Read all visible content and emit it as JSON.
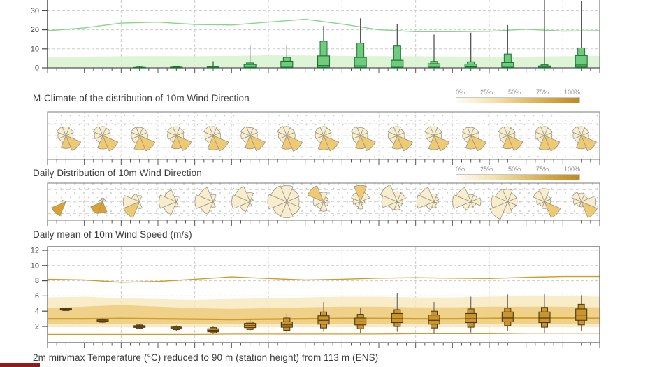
{
  "palette": {
    "green_line": "#86d58a",
    "green_band": "#d8f2d0",
    "green_box_fill": "#6fcb7e",
    "green_box_edge": "#1f6f33",
    "rose_light": "#f7edc9",
    "rose_dark": "#eec566",
    "rose_strong": "#d9991f",
    "rose_edge": "#9a958a",
    "gold_line": "#cf9c2c",
    "gold_band_outer": "#f6e7bb",
    "gold_band_inner": "#eecd7f",
    "gold_box_fill": "#c9952e",
    "gold_box_edge": "#4f3a10",
    "whisker": "#606060",
    "grid": "#cccccc",
    "axis": "#4a4a4a",
    "frame": "#8f8f8f",
    "red_strip": "#8e1c1c"
  },
  "chart_data": {
    "type": "meteogram",
    "days": 15,
    "wind_gusts": {
      "type": "box",
      "yticks": [
        0,
        10,
        20,
        30
      ],
      "ylim": [
        0,
        36
      ],
      "climate_line": [
        19.5,
        21,
        23.5,
        24,
        22.8,
        22.5,
        24,
        25.5,
        23,
        20,
        19,
        19,
        19.2,
        20.3,
        19.3,
        19.5
      ],
      "climate_band_top": [
        5.6,
        5.9,
        6.1,
        6.2,
        6.1,
        6.3,
        6.6,
        6.5,
        6.3,
        6.2,
        6.1,
        6.0,
        5.9,
        5.9,
        6.1,
        6.3
      ],
      "boxes": [
        null,
        null,
        [
          0,
          0,
          0,
          0.05,
          0.25,
          0.45,
          0.7
        ],
        [
          0,
          0,
          0,
          0.1,
          0.4,
          0.7,
          1.1
        ],
        [
          0,
          0,
          0,
          0.1,
          0.5,
          0.9,
          3.5
        ],
        [
          0,
          0,
          0,
          0.3,
          1.8,
          2.6,
          12
        ],
        [
          0,
          0,
          0.2,
          0.8,
          3.5,
          5.5,
          12
        ],
        [
          0,
          0,
          0.3,
          1.2,
          6.3,
          14,
          22
        ],
        [
          0,
          0,
          0.3,
          1.0,
          5.5,
          13,
          26
        ],
        [
          0,
          0,
          0.2,
          0.8,
          4.0,
          11.5,
          23
        ],
        [
          0,
          0,
          0.2,
          0.8,
          2.2,
          3.4,
          17.5
        ],
        [
          0,
          0,
          0.1,
          0.6,
          2.0,
          3.2,
          18.5
        ],
        [
          0,
          0,
          0.2,
          0.8,
          2.8,
          7.3,
          22.5
        ],
        [
          0,
          0,
          0.1,
          0.4,
          1.0,
          1.6,
          36
        ],
        [
          0,
          0,
          0.4,
          1.5,
          6.5,
          10.5,
          35
        ]
      ]
    },
    "windrose_mclimate": {
      "type": "windrose",
      "title": "M-Climate of the distribution of 10m Wind Direction",
      "legend": [
        "0%",
        "25%",
        "50%",
        "75%",
        "100%"
      ],
      "directions": [
        "N",
        "NE",
        "E",
        "SE",
        "S",
        "SW",
        "W",
        "NW"
      ],
      "roses": [
        {
          "r": [
            0.55,
            0.5,
            0.45,
            1,
            0.8,
            0.45,
            0.5,
            0.6
          ],
          "dark": [
            3,
            4
          ],
          "scale": 0.92
        },
        {
          "r": [
            0.55,
            0.5,
            0.45,
            1,
            0.8,
            0.45,
            0.5,
            0.6
          ],
          "dark": [
            3,
            4
          ],
          "scale": 0.95
        },
        {
          "r": [
            0.5,
            0.5,
            0.5,
            1,
            0.85,
            0.5,
            0.5,
            0.55
          ],
          "dark": [
            3,
            4
          ],
          "scale": 0.95
        },
        {
          "r": [
            0.55,
            0.5,
            0.45,
            1,
            0.8,
            0.45,
            0.55,
            0.6
          ],
          "dark": [
            3,
            4
          ],
          "scale": 0.93
        },
        {
          "r": [
            0.55,
            0.45,
            0.45,
            1,
            0.85,
            0.5,
            0.5,
            0.6
          ],
          "dark": [
            3,
            4
          ],
          "scale": 0.95
        },
        {
          "r": [
            0.5,
            0.5,
            0.45,
            1,
            0.8,
            0.5,
            0.55,
            0.6
          ],
          "dark": [
            3,
            4
          ],
          "scale": 0.94
        },
        {
          "r": [
            0.55,
            0.5,
            0.5,
            1,
            0.8,
            0.45,
            0.5,
            0.6
          ],
          "dark": [
            3,
            4
          ],
          "scale": 0.96
        },
        {
          "r": [
            0.55,
            0.5,
            0.45,
            1,
            0.85,
            0.45,
            0.5,
            0.55
          ],
          "dark": [
            3,
            4
          ],
          "scale": 0.95
        },
        {
          "r": [
            0.5,
            0.5,
            0.45,
            1,
            0.8,
            0.5,
            0.5,
            0.6
          ],
          "dark": [
            3,
            4
          ],
          "scale": 0.93
        },
        {
          "r": [
            0.55,
            0.45,
            0.45,
            1,
            0.8,
            0.5,
            0.55,
            0.6
          ],
          "dark": [
            3,
            4
          ],
          "scale": 0.95
        },
        {
          "r": [
            0.55,
            0.5,
            0.45,
            1,
            0.85,
            0.45,
            0.5,
            0.6
          ],
          "dark": [
            3,
            4
          ],
          "scale": 0.94
        },
        {
          "r": [
            0.5,
            0.5,
            0.5,
            1,
            0.8,
            0.45,
            0.5,
            0.55
          ],
          "dark": [
            3,
            4
          ],
          "scale": 0.95
        },
        {
          "r": [
            0.55,
            0.5,
            0.45,
            1,
            0.8,
            0.5,
            0.5,
            0.6
          ],
          "dark": [
            3,
            4
          ],
          "scale": 0.93
        },
        {
          "r": [
            0.55,
            0.5,
            0.45,
            1,
            0.85,
            0.45,
            0.55,
            0.6
          ],
          "dark": [
            3,
            4
          ],
          "scale": 0.95
        },
        {
          "r": [
            0.55,
            0.5,
            0.45,
            1,
            0.8,
            0.45,
            0.5,
            0.6
          ],
          "dark": [
            3,
            4
          ],
          "scale": 0.94
        }
      ]
    },
    "windrose_daily": {
      "type": "windrose",
      "title": "Daily Distribution of 10m Wind Direction",
      "legend": [
        "0%",
        "25%",
        "50%",
        "75%",
        "100%"
      ],
      "directions": [
        "N",
        "NE",
        "E",
        "SE",
        "S",
        "SW",
        "W",
        "NW"
      ],
      "roses": [
        {
          "r": [
            0,
            0,
            0,
            0,
            0,
            1,
            0.25,
            0
          ],
          "dark": [
            5
          ],
          "strong": true,
          "scale": 0.85
        },
        {
          "r": [
            0.25,
            0.2,
            0,
            0,
            0.75,
            0.9,
            0.25,
            0.2
          ],
          "dark": [
            4,
            5
          ],
          "strong": true,
          "scale": 0.8
        },
        {
          "r": [
            0.35,
            0,
            0,
            0,
            0.4,
            1,
            0.95,
            0.5
          ],
          "dark": [
            5
          ],
          "scale": 0.95
        },
        {
          "r": [
            0.3,
            0,
            0,
            0,
            0.3,
            0.8,
            1,
            0.75
          ],
          "dark": [],
          "scale": 0.95
        },
        {
          "r": [
            0.4,
            0.15,
            0,
            0,
            0.3,
            0.75,
            1,
            0.85
          ],
          "dark": [],
          "scale": 1.0
        },
        {
          "r": [
            0.5,
            0.2,
            0,
            0,
            0.25,
            0.6,
            1,
            0.9
          ],
          "dark": [],
          "scale": 1.0
        },
        {
          "r": [
            0.85,
            0.7,
            0.65,
            0.75,
            0.85,
            0.8,
            1,
            0.9
          ],
          "dark": [],
          "scale": 1.05
        },
        {
          "r": [
            0.55,
            0.3,
            0.25,
            0.3,
            0.55,
            0.45,
            0.6,
            1
          ],
          "dark": [
            7
          ],
          "scale": 0.95
        },
        {
          "r": [
            1,
            0.6,
            0.25,
            0.2,
            0.45,
            0.35,
            0.45,
            0.6
          ],
          "dark": [
            0
          ],
          "scale": 0.9
        },
        {
          "r": [
            0.55,
            0.5,
            0.3,
            0.3,
            0.45,
            0.5,
            0.85,
            1
          ],
          "dark": [],
          "scale": 1.0
        },
        {
          "r": [
            0.45,
            0.3,
            0.25,
            0.2,
            0.35,
            0.5,
            1,
            0.9
          ],
          "dark": [],
          "scale": 0.95
        },
        {
          "r": [
            0.4,
            0.4,
            0.55,
            0.3,
            0.35,
            0.5,
            1,
            0.85
          ],
          "dark": [],
          "scale": 1.0
        },
        {
          "r": [
            0.65,
            0.5,
            0.5,
            0.45,
            0.6,
            1,
            0.85,
            0.7
          ],
          "dark": [],
          "scale": 1.05
        },
        {
          "r": [
            0.75,
            0.4,
            0.35,
            1,
            0.4,
            0.3,
            0.45,
            0.7
          ],
          "dark": [
            3
          ],
          "scale": 0.95
        },
        {
          "r": [
            0.5,
            0.4,
            0.85,
            1,
            0.3,
            0.3,
            0.45,
            0.6
          ],
          "dark": [
            3
          ],
          "scale": 0.95
        }
      ]
    },
    "wind_speed": {
      "type": "box",
      "title": "Daily mean of 10m Wind Speed (m/s)",
      "yticks": [
        2,
        4,
        6,
        8,
        10,
        12
      ],
      "ylim": [
        0,
        12.5
      ],
      "upper_line": [
        8.2,
        8.1,
        7.8,
        7.9,
        8.2,
        8.5,
        8.3,
        8.1,
        8.2,
        8.35,
        8.4,
        8.35,
        8.3,
        8.45,
        8.55,
        8.55
      ],
      "lower_line": [
        0.95,
        0.95,
        0.95,
        0.95,
        0.95,
        1,
        1,
        1,
        1,
        1,
        1.05,
        1.05,
        1.05,
        1.1,
        1.1,
        1.1
      ],
      "median_line": [
        3,
        3,
        3.05,
        3,
        2.95,
        2.9,
        2.95,
        3,
        3.05,
        3.05,
        3,
        3,
        3.05,
        3.1,
        3.1,
        3.05
      ],
      "band_outer": {
        "top": [
          5.8,
          5.9,
          5.7,
          5.6,
          5.5,
          5.6,
          5.7,
          5.8,
          5.9,
          5.9,
          5.8,
          5.8,
          5.9,
          6,
          6,
          5.9
        ],
        "bottom": 1.9
      },
      "band_inner": {
        "top": [
          4.4,
          4.6,
          4.8,
          4.6,
          4.4,
          4.3,
          4.4,
          4.5,
          4.6,
          4.6,
          4.5,
          4.5,
          4.6,
          4.6,
          4.6,
          4.5
        ],
        "bottom": 2.3
      },
      "boxes": [
        [
          4.0,
          4.08,
          4.15,
          4.25,
          4.35,
          4.42,
          4.5
        ],
        [
          2.45,
          2.55,
          2.62,
          2.72,
          2.85,
          2.95,
          3.05
        ],
        [
          1.65,
          1.78,
          1.88,
          1.98,
          2.1,
          2.2,
          2.32
        ],
        [
          1.45,
          1.58,
          1.68,
          1.8,
          1.92,
          2.02,
          2.15
        ],
        [
          1.0,
          1.15,
          1.3,
          1.5,
          1.7,
          1.85,
          2.05
        ],
        [
          1.35,
          1.6,
          1.85,
          2.1,
          2.4,
          2.6,
          3.0
        ],
        [
          1.1,
          1.5,
          1.9,
          2.2,
          2.6,
          3.1,
          3.7
        ],
        [
          1.3,
          1.8,
          2.3,
          2.8,
          3.4,
          3.9,
          5.2
        ],
        [
          1.1,
          1.7,
          2.2,
          2.6,
          3.1,
          3.6,
          4.4
        ],
        [
          1.3,
          2.0,
          2.5,
          3.0,
          3.7,
          4.2,
          6.4
        ],
        [
          1.0,
          1.8,
          2.3,
          2.8,
          3.5,
          4.0,
          5.2
        ],
        [
          1.2,
          1.9,
          2.5,
          3.0,
          3.7,
          4.3,
          5.9
        ],
        [
          1.4,
          2.1,
          2.6,
          3.1,
          3.9,
          4.4,
          6.2
        ],
        [
          1.1,
          1.9,
          2.5,
          3.1,
          3.9,
          4.5,
          6.3
        ],
        [
          1.4,
          2.2,
          2.8,
          3.5,
          4.3,
          4.9,
          6.1
        ]
      ]
    },
    "temperature_title": "2m min/max Temperature (°C) reduced to 90 m (station height) from 113 m (ENS)"
  }
}
